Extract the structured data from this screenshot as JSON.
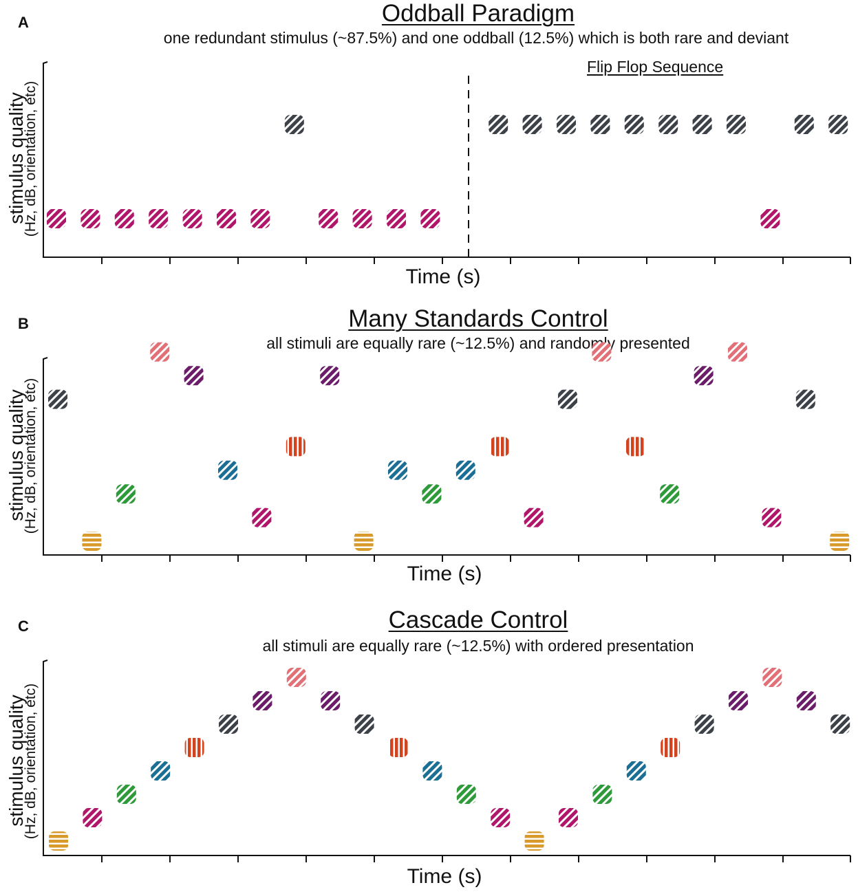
{
  "colors": {
    "magenta": "#b0176a",
    "dark_gray": "#3d4148",
    "pink": "#e17177",
    "purple": "#6b1d6a",
    "orange_red": "#d2441f",
    "teal": "#1c6f94",
    "green": "#2f9a3a",
    "gold": "#d89a2a"
  },
  "panels": [
    {
      "letter": "A",
      "title": "Oddball Paradigm",
      "subtitle": "one redundant stimulus (~87.5%) and one oddball (12.5%) which is both rare and deviant",
      "annotation": "Flip Flop Sequence",
      "y_label_line1": "stimulus quality",
      "y_label_line2": "(Hz, dB, orientation, etc)",
      "x_label": "Time (s)",
      "divider_after_index": 11,
      "stimuli": [
        {
          "t": 0,
          "level": 1,
          "color": "magenta",
          "pattern": "diag"
        },
        {
          "t": 1,
          "level": 1,
          "color": "magenta",
          "pattern": "diag"
        },
        {
          "t": 2,
          "level": 1,
          "color": "magenta",
          "pattern": "diag"
        },
        {
          "t": 3,
          "level": 1,
          "color": "magenta",
          "pattern": "diag"
        },
        {
          "t": 4,
          "level": 1,
          "color": "magenta",
          "pattern": "diag"
        },
        {
          "t": 5,
          "level": 1,
          "color": "magenta",
          "pattern": "diag"
        },
        {
          "t": 6,
          "level": 1,
          "color": "magenta",
          "pattern": "diag"
        },
        {
          "t": 7,
          "level": 5,
          "color": "dark_gray",
          "pattern": "diag"
        },
        {
          "t": 8,
          "level": 1,
          "color": "magenta",
          "pattern": "diag"
        },
        {
          "t": 9,
          "level": 1,
          "color": "magenta",
          "pattern": "diag"
        },
        {
          "t": 10,
          "level": 1,
          "color": "magenta",
          "pattern": "diag"
        },
        {
          "t": 11,
          "level": 1,
          "color": "magenta",
          "pattern": "diag"
        },
        {
          "t": 13,
          "level": 5,
          "color": "dark_gray",
          "pattern": "diag"
        },
        {
          "t": 14,
          "level": 5,
          "color": "dark_gray",
          "pattern": "diag"
        },
        {
          "t": 15,
          "level": 5,
          "color": "dark_gray",
          "pattern": "diag"
        },
        {
          "t": 16,
          "level": 5,
          "color": "dark_gray",
          "pattern": "diag"
        },
        {
          "t": 17,
          "level": 5,
          "color": "dark_gray",
          "pattern": "diag"
        },
        {
          "t": 18,
          "level": 5,
          "color": "dark_gray",
          "pattern": "diag"
        },
        {
          "t": 19,
          "level": 5,
          "color": "dark_gray",
          "pattern": "diag"
        },
        {
          "t": 20,
          "level": 5,
          "color": "dark_gray",
          "pattern": "diag"
        },
        {
          "t": 21,
          "level": 1,
          "color": "magenta",
          "pattern": "diag"
        },
        {
          "t": 22,
          "level": 5,
          "color": "dark_gray",
          "pattern": "diag"
        },
        {
          "t": 23,
          "level": 5,
          "color": "dark_gray",
          "pattern": "diag"
        }
      ]
    },
    {
      "letter": "B",
      "title": "Many Standards Control",
      "subtitle": "all stimuli are equally rare (~12.5%) and randomly presented",
      "y_label_line1": "stimulus quality",
      "y_label_line2": "(Hz, dB, orientation, etc)",
      "x_label": "Time (s)",
      "stimuli": [
        {
          "t": 0,
          "level": 6,
          "color": "dark_gray",
          "pattern": "diag"
        },
        {
          "t": 1,
          "level": 0,
          "color": "gold",
          "pattern": "horiz"
        },
        {
          "t": 2,
          "level": 2,
          "color": "green",
          "pattern": "diag"
        },
        {
          "t": 3,
          "level": 8,
          "color": "pink",
          "pattern": "diag"
        },
        {
          "t": 4,
          "level": 7,
          "color": "purple",
          "pattern": "diag"
        },
        {
          "t": 5,
          "level": 3,
          "color": "teal",
          "pattern": "diag"
        },
        {
          "t": 6,
          "level": 1,
          "color": "magenta",
          "pattern": "diag"
        },
        {
          "t": 7,
          "level": 4,
          "color": "orange_red",
          "pattern": "vert"
        },
        {
          "t": 8,
          "level": 7,
          "color": "purple",
          "pattern": "diag"
        },
        {
          "t": 9,
          "level": 0,
          "color": "gold",
          "pattern": "horiz"
        },
        {
          "t": 10,
          "level": 3,
          "color": "teal",
          "pattern": "diag"
        },
        {
          "t": 11,
          "level": 2,
          "color": "green",
          "pattern": "diag"
        },
        {
          "t": 12,
          "level": 3,
          "color": "teal",
          "pattern": "diag"
        },
        {
          "t": 13,
          "level": 4,
          "color": "orange_red",
          "pattern": "vert"
        },
        {
          "t": 14,
          "level": 1,
          "color": "magenta",
          "pattern": "diag"
        },
        {
          "t": 15,
          "level": 6,
          "color": "dark_gray",
          "pattern": "diag"
        },
        {
          "t": 16,
          "level": 8,
          "color": "pink",
          "pattern": "diag"
        },
        {
          "t": 17,
          "level": 4,
          "color": "orange_red",
          "pattern": "vert"
        },
        {
          "t": 18,
          "level": 2,
          "color": "green",
          "pattern": "diag"
        },
        {
          "t": 19,
          "level": 7,
          "color": "purple",
          "pattern": "diag"
        },
        {
          "t": 20,
          "level": 8,
          "color": "pink",
          "pattern": "diag"
        },
        {
          "t": 21,
          "level": 1,
          "color": "magenta",
          "pattern": "diag"
        },
        {
          "t": 22,
          "level": 6,
          "color": "dark_gray",
          "pattern": "diag"
        },
        {
          "t": 23,
          "level": 0,
          "color": "gold",
          "pattern": "horiz"
        }
      ]
    },
    {
      "letter": "C",
      "title": "Cascade Control",
      "subtitle": "all stimuli are equally rare (~12.5%) with ordered presentation",
      "y_label_line1": "stimulus quality",
      "y_label_line2": "(Hz, dB, orientation, etc)",
      "x_label": "Time (s)",
      "stimuli": [
        {
          "t": 0,
          "level": 0,
          "color": "gold",
          "pattern": "horiz"
        },
        {
          "t": 1,
          "level": 1,
          "color": "magenta",
          "pattern": "diag"
        },
        {
          "t": 2,
          "level": 2,
          "color": "green",
          "pattern": "diag"
        },
        {
          "t": 3,
          "level": 3,
          "color": "teal",
          "pattern": "diag"
        },
        {
          "t": 4,
          "level": 4,
          "color": "orange_red",
          "pattern": "vert"
        },
        {
          "t": 5,
          "level": 5,
          "color": "dark_gray",
          "pattern": "diag"
        },
        {
          "t": 6,
          "level": 6,
          "color": "purple",
          "pattern": "diag"
        },
        {
          "t": 7,
          "level": 7,
          "color": "pink",
          "pattern": "diag"
        },
        {
          "t": 8,
          "level": 6,
          "color": "purple",
          "pattern": "diag"
        },
        {
          "t": 9,
          "level": 5,
          "color": "dark_gray",
          "pattern": "diag"
        },
        {
          "t": 10,
          "level": 4,
          "color": "orange_red",
          "pattern": "vert"
        },
        {
          "t": 11,
          "level": 3,
          "color": "teal",
          "pattern": "diag"
        },
        {
          "t": 12,
          "level": 2,
          "color": "green",
          "pattern": "diag"
        },
        {
          "t": 13,
          "level": 1,
          "color": "magenta",
          "pattern": "diag"
        },
        {
          "t": 14,
          "level": 0,
          "color": "gold",
          "pattern": "horiz"
        },
        {
          "t": 15,
          "level": 1,
          "color": "magenta",
          "pattern": "diag"
        },
        {
          "t": 16,
          "level": 2,
          "color": "green",
          "pattern": "diag"
        },
        {
          "t": 17,
          "level": 3,
          "color": "teal",
          "pattern": "diag"
        },
        {
          "t": 18,
          "level": 4,
          "color": "orange_red",
          "pattern": "vert"
        },
        {
          "t": 19,
          "level": 5,
          "color": "dark_gray",
          "pattern": "diag"
        },
        {
          "t": 20,
          "level": 6,
          "color": "purple",
          "pattern": "diag"
        },
        {
          "t": 21,
          "level": 7,
          "color": "pink",
          "pattern": "diag"
        },
        {
          "t": 22,
          "level": 6,
          "color": "purple",
          "pattern": "diag"
        },
        {
          "t": 23,
          "level": 5,
          "color": "dark_gray",
          "pattern": "diag"
        }
      ]
    }
  ]
}
